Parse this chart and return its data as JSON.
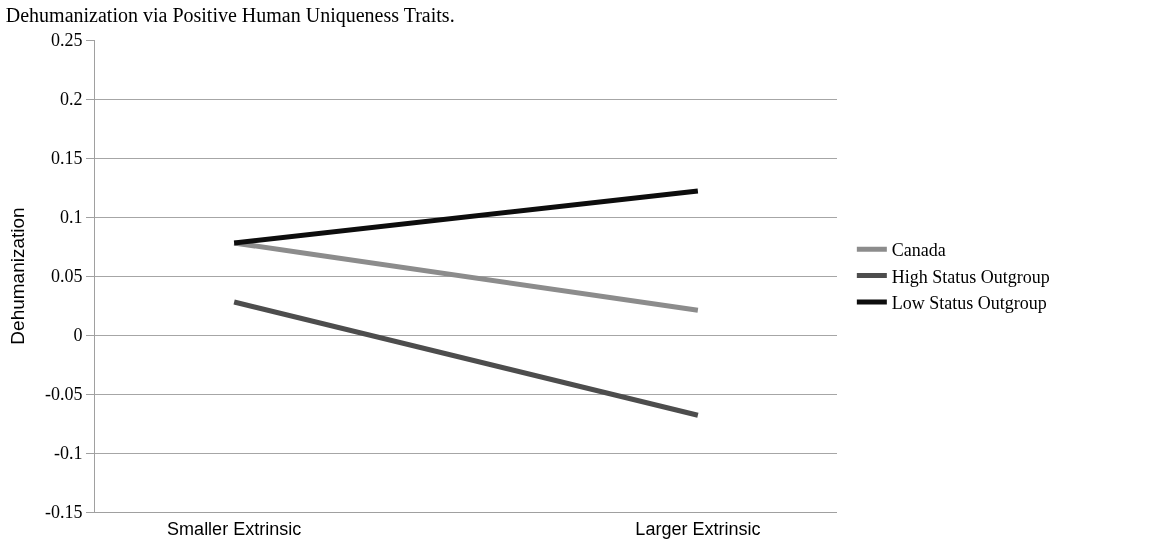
{
  "chart_data": {
    "type": "line",
    "title": "Dehumanization via Positive Human Uniqueness Traits.",
    "ylabel": "Dehumanization",
    "categories": [
      "Smaller Extrinsic",
      "Larger Extrinsic"
    ],
    "series": [
      {
        "name": "Canada",
        "color": "#8c8c8c",
        "values": [
          0.078,
          0.021
        ]
      },
      {
        "name": "High Status Outgroup",
        "color": "#4d4d4d",
        "values": [
          0.028,
          -0.068
        ]
      },
      {
        "name": "Low Status Outgroup",
        "color": "#0d0d0d",
        "values": [
          0.078,
          0.122
        ]
      }
    ],
    "ylim": [
      -0.15,
      0.25
    ],
    "yticks": [
      -0.15,
      -0.1,
      -0.05,
      0,
      0.05,
      0.1,
      0.15,
      0.2,
      0.25
    ],
    "grid": "y",
    "legend": "right",
    "marker": "none",
    "line_style": "solid"
  }
}
